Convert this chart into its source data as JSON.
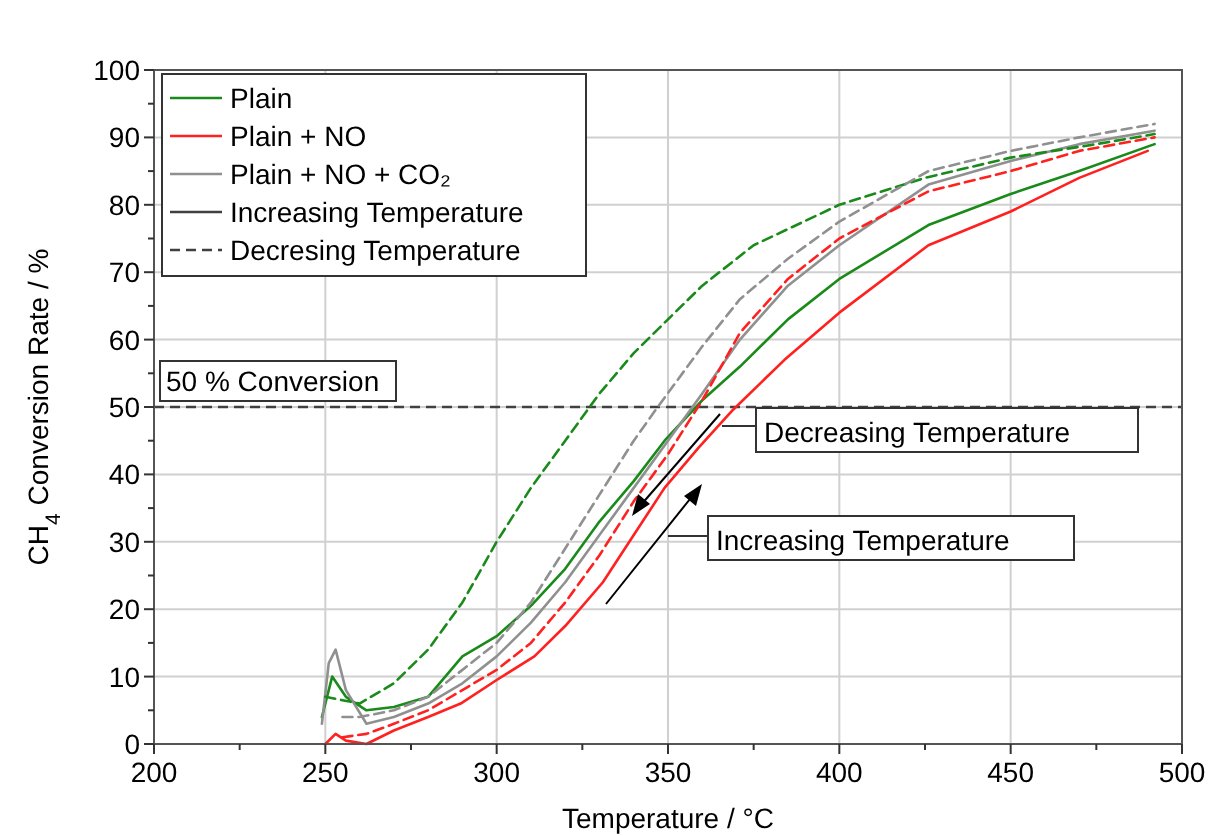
{
  "chart_data": {
    "type": "line",
    "xlabel": "Temperature / °C",
    "ylabel": "CH$_{4}$ Conversion Rate / %",
    "xlim": [
      200,
      500
    ],
    "ylim": [
      0,
      100
    ],
    "xticks": [
      200,
      {
        "value": 225,
        "label": null
      },
      250,
      {
        "value": 275,
        "label": null
      },
      300,
      {
        "value": 325,
        "label": null
      },
      350,
      {
        "value": 375,
        "label": null
      },
      400,
      {
        "value": 425,
        "label": null
      },
      450,
      {
        "value": 475,
        "label": null
      },
      500
    ],
    "yticks": [
      0,
      {
        "value": 5,
        "label": null
      },
      10,
      {
        "value": 15,
        "label": null
      },
      20,
      {
        "value": 25,
        "label": null
      },
      30,
      {
        "value": 35,
        "label": null
      },
      40,
      {
        "value": 45,
        "label": null
      },
      50,
      {
        "value": 55,
        "label": null
      },
      60,
      {
        "value": 65,
        "label": null
      },
      70,
      {
        "value": 75,
        "label": null
      },
      80,
      {
        "value": 85,
        "label": null
      },
      90,
      {
        "value": 95,
        "label": null
      },
      100
    ],
    "grid": true,
    "legend": "top left",
    "ref_lines": [
      {
        "axis": "y",
        "value": 50,
        "label": "50 % Conversion",
        "color": "#404040",
        "line_style": "dashed"
      }
    ],
    "annotations": [
      "Decreasing Temperature",
      "Increasing Temperature"
    ],
    "series": [
      {
        "name": "Plain",
        "color": "#1a8a1a",
        "line_style": "solid",
        "x": [
          249,
          252,
          256,
          262,
          270,
          280,
          290,
          300,
          310,
          320,
          330,
          340,
          349,
          360,
          371,
          385,
          400,
          426,
          450,
          470,
          492
        ],
        "values": [
          4,
          10,
          7,
          5,
          5.5,
          7,
          13,
          16,
          20.5,
          26,
          33,
          39,
          45,
          51,
          56,
          63,
          69,
          77,
          81.6,
          85,
          89
        ]
      },
      {
        "name": "Plain + NO",
        "color": "#ff2020",
        "line_style": "solid",
        "x": [
          250,
          253,
          256,
          262,
          270,
          280,
          289.5,
          300,
          311,
          320,
          331,
          340,
          349,
          359,
          369,
          384,
          400,
          426,
          450,
          470,
          490
        ],
        "values": [
          0,
          1.5,
          0.5,
          0,
          2,
          4,
          6,
          9.5,
          13,
          17.5,
          24,
          31,
          38,
          44,
          49.6,
          57,
          64,
          74,
          79,
          84,
          88
        ]
      },
      {
        "name": "Plain + NO + CO₂",
        "color": "#909090",
        "line_style": "solid",
        "x": [
          249,
          251,
          253,
          256,
          262,
          270,
          280,
          290,
          300,
          310,
          320,
          330,
          340,
          350,
          360,
          371,
          385,
          400,
          426,
          450,
          470,
          492
        ],
        "values": [
          3,
          12,
          14,
          8,
          3,
          4,
          6,
          9,
          13,
          18,
          24,
          31,
          38,
          45,
          52,
          60,
          68,
          74,
          83,
          86.5,
          89,
          91
        ]
      },
      {
        "color": "#1a8a1a",
        "line_style": "dashed",
        "x": [
          250,
          260,
          270,
          280,
          290,
          300,
          310,
          320,
          330,
          340,
          350,
          360,
          375,
          400,
          425,
          450,
          475,
          492
        ],
        "values": [
          7,
          6,
          9,
          14,
          21,
          30,
          38,
          45,
          52,
          58,
          63,
          68,
          74,
          80,
          84,
          87,
          89,
          90.5
        ]
      },
      {
        "color": "#ff2020",
        "line_style": "dashed",
        "x": [
          255,
          262,
          270,
          280,
          290,
          300,
          310,
          320,
          330,
          340,
          350,
          360,
          371,
          385,
          400,
          426,
          450,
          470,
          492
        ],
        "values": [
          1,
          1.5,
          3,
          5,
          8,
          11,
          15,
          21,
          28,
          36,
          43,
          51,
          61,
          69,
          75,
          82,
          85,
          88,
          90
        ]
      },
      {
        "color": "#909090",
        "line_style": "dashed",
        "x": [
          255,
          260,
          270,
          280,
          290,
          300,
          310,
          320,
          330,
          340,
          347,
          360,
          371,
          385,
          400,
          426,
          450,
          470,
          492
        ],
        "values": [
          4,
          4,
          5,
          7,
          11,
          15,
          21,
          29,
          37,
          45,
          50,
          59,
          66,
          72,
          77.5,
          85,
          88,
          90,
          92
        ]
      },
      {
        "name": "Increasing Temperature",
        "color": "#404040",
        "line_style": "solid"
      },
      {
        "name": "Decresing Temperature",
        "color": "#404040",
        "line_style": "dashed"
      }
    ]
  }
}
